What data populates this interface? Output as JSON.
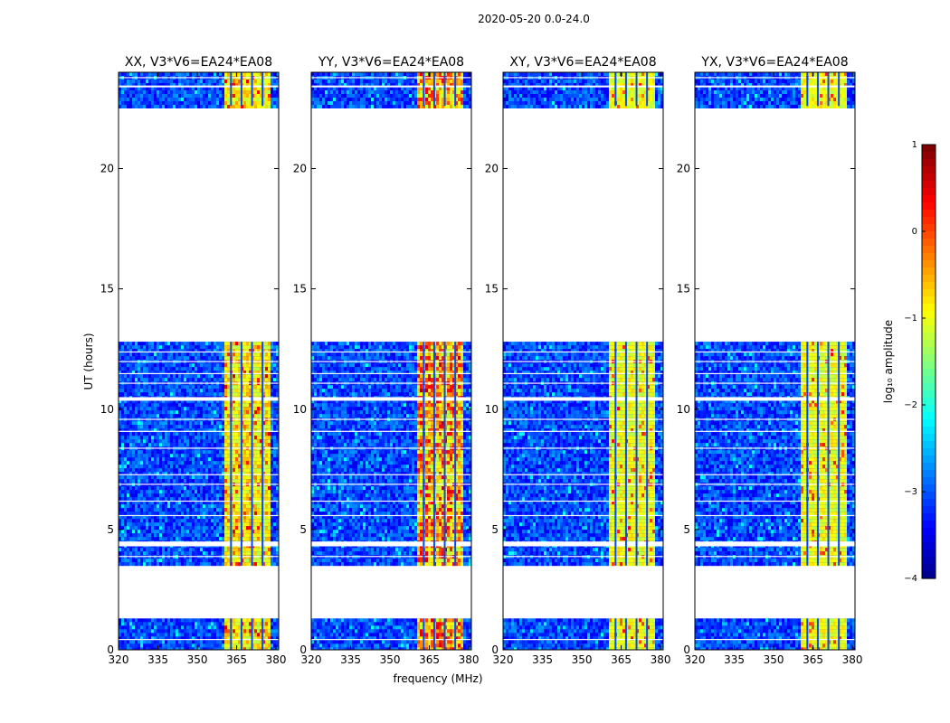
{
  "figure": {
    "suptitle": "2020-05-20 0.0-24.0",
    "xlabel": "frequency (MHz)",
    "ylabel": "UT (hours)"
  },
  "colorbar": {
    "label": "log₁₀ amplitude",
    "ticks": [
      "1",
      "0",
      "−1",
      "−2",
      "−3",
      "−4"
    ],
    "range": [
      -4,
      1
    ],
    "colormap": "jet"
  },
  "chart_data": {
    "type": "heatmap",
    "x_range": [
      320,
      381
    ],
    "y_range": [
      0,
      24
    ],
    "x_ticks": [
      320,
      335,
      350,
      365,
      380
    ],
    "y_ticks": [
      0,
      5,
      10,
      15,
      20
    ],
    "x_tick_labels": [
      "320",
      "335",
      "350",
      "365",
      "380"
    ],
    "y_tick_labels": [
      "0",
      "5",
      "10",
      "15",
      "20"
    ],
    "data_segments_hours": [
      [
        0.0,
        1.3
      ],
      [
        3.5,
        12.8
      ],
      [
        22.6,
        24.0
      ]
    ],
    "gap_hours": [
      10.35,
      10.5,
      4.3,
      4.5,
      23.35
    ],
    "strong_band_mhz": [
      359.5,
      377.5
    ],
    "panels": [
      {
        "title": "XX, V3*V6=EA24*EA08",
        "intensity": 0.85
      },
      {
        "title": "YY, V3*V6=EA24*EA08",
        "intensity": 1.0
      },
      {
        "title": "XY, V3*V6=EA24*EA08",
        "intensity": 0.6
      },
      {
        "title": "YX, V3*V6=EA24*EA08",
        "intensity": 0.6
      }
    ]
  }
}
